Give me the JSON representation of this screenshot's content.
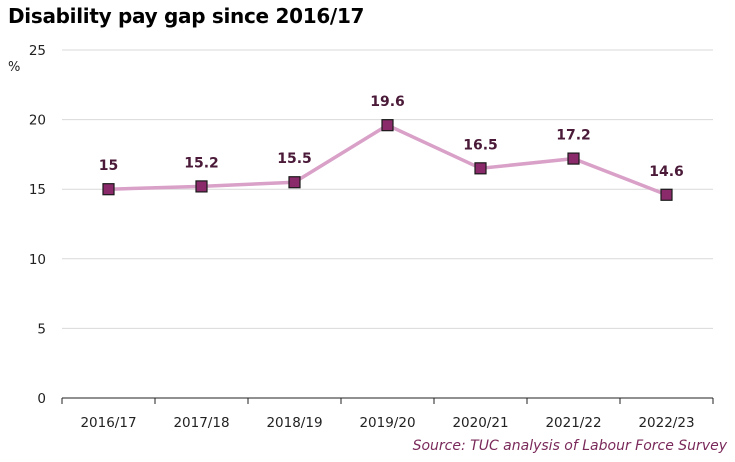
{
  "header": {
    "title": "Disability pay gap since 2016/17"
  },
  "y_unit": "%",
  "footer": {
    "source": "Source: TUC analysis of Labour Force Survey"
  },
  "colors": {
    "line": "#d9a0c8",
    "marker_fill": "#8b2a6b",
    "marker_stroke": "#1a1a1a",
    "grid": "#d9d9d9",
    "label": "#4a1a38"
  },
  "chart_data": {
    "type": "line",
    "title": "Disability pay gap since 2016/17",
    "categories": [
      "2016/17",
      "2017/18",
      "2018/19",
      "2019/20",
      "2020/21",
      "2021/22",
      "2022/23"
    ],
    "values": [
      15,
      15.2,
      15.5,
      19.6,
      16.5,
      17.2,
      14.6
    ],
    "data_labels": [
      "15",
      "15.2",
      "15.5",
      "19.6",
      "16.5",
      "17.2",
      "14.6"
    ],
    "ylim": [
      0,
      25
    ],
    "yticks": [
      0,
      5,
      10,
      15,
      20,
      25
    ],
    "ylabel": "%",
    "xlabel": "",
    "grid": true,
    "legend": "none"
  }
}
